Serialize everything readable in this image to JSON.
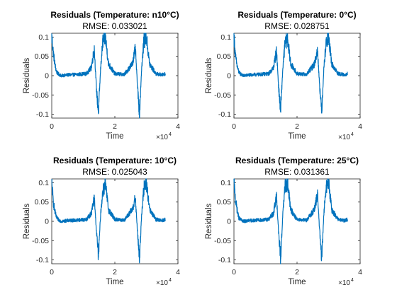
{
  "chart_data": [
    {
      "type": "line",
      "title": "Residuals (Temperature: n10°C)",
      "subtitle": "RMSE: 0.033021",
      "xlabel": "Time",
      "ylabel": "Residuals",
      "xlim": [
        0,
        40000
      ],
      "ylim": [
        -0.11,
        0.11
      ],
      "x_ticks": [
        "0",
        "2",
        "4"
      ],
      "y_ticks": [
        "-0.1",
        "-0.05",
        "0",
        "0.05",
        "0.1"
      ],
      "x_exponent_base": "×10",
      "x_exponent_power": "4",
      "grid": false,
      "series_color": "#0072BD",
      "x": [
        0,
        500,
        1000,
        1500,
        2000,
        3000,
        5000,
        8000,
        11000,
        12500,
        13500,
        14200,
        14800,
        15500,
        16200,
        17000,
        18000,
        20000,
        23000,
        25500,
        26500,
        27200,
        27800,
        28500,
        29200,
        30000,
        31000,
        33000,
        35000,
        36000
      ],
      "values": [
        0.1,
        0.06,
        0.03,
        0.01,
        0.005,
        0.0,
        0.002,
        0.003,
        0.005,
        0.02,
        0.07,
        -0.04,
        -0.095,
        0.02,
        0.09,
        0.1,
        0.03,
        0.005,
        0.003,
        0.03,
        0.07,
        -0.03,
        -0.1,
        0.02,
        0.09,
        0.1,
        0.03,
        0.005,
        0.002,
        0.005
      ]
    },
    {
      "type": "line",
      "title": "Residuals (Temperature: 0°C)",
      "subtitle": "RMSE: 0.028751",
      "xlabel": "Time",
      "ylabel": "Residuals",
      "xlim": [
        0,
        40000
      ],
      "ylim": [
        -0.11,
        0.11
      ],
      "x_ticks": [
        "0",
        "2",
        "4"
      ],
      "y_ticks": [
        "-0.1",
        "-0.05",
        "0",
        "0.05",
        "0.1"
      ],
      "x_exponent_base": "×10",
      "x_exponent_power": "4",
      "grid": false,
      "series_color": "#0072BD",
      "x": [
        0,
        500,
        1000,
        1500,
        2000,
        3000,
        5000,
        8000,
        11000,
        12500,
        13500,
        14200,
        14800,
        15500,
        16200,
        17000,
        18000,
        20000,
        23000,
        25500,
        26500,
        27200,
        27800,
        28500,
        29200,
        30000,
        31000,
        33000,
        35000,
        36000
      ],
      "values": [
        0.1,
        0.05,
        0.025,
        0.01,
        0.005,
        0.0,
        0.002,
        0.003,
        0.005,
        0.02,
        0.065,
        -0.035,
        -0.09,
        0.02,
        0.085,
        0.095,
        0.03,
        0.005,
        0.003,
        0.03,
        0.065,
        -0.03,
        -0.095,
        0.02,
        0.085,
        0.1,
        0.03,
        0.005,
        0.002,
        0.005
      ]
    },
    {
      "type": "line",
      "title": "Residuals (Temperature: 10°C)",
      "subtitle": "RMSE: 0.025043",
      "xlabel": "Time",
      "ylabel": "Residuals",
      "xlim": [
        0,
        40000
      ],
      "ylim": [
        -0.11,
        0.11
      ],
      "x_ticks": [
        "0",
        "2",
        "4"
      ],
      "y_ticks": [
        "-0.1",
        "-0.05",
        "0",
        "0.05",
        "0.1"
      ],
      "x_exponent_base": "×10",
      "x_exponent_power": "4",
      "grid": false,
      "series_color": "#0072BD",
      "x": [
        0,
        500,
        1000,
        1500,
        2000,
        3000,
        5000,
        8000,
        11000,
        12500,
        13500,
        14200,
        14800,
        15500,
        16200,
        17000,
        18000,
        20000,
        23000,
        25500,
        26500,
        27200,
        27800,
        28500,
        29200,
        30000,
        31000,
        33000,
        35000,
        36000
      ],
      "values": [
        0.1,
        0.05,
        0.025,
        0.01,
        0.005,
        0.0,
        0.002,
        0.003,
        0.005,
        0.02,
        0.06,
        -0.03,
        -0.09,
        0.02,
        0.08,
        0.095,
        0.03,
        0.005,
        0.003,
        0.03,
        0.06,
        -0.03,
        -0.1,
        0.02,
        0.085,
        0.1,
        0.03,
        0.005,
        0.002,
        0.005
      ]
    },
    {
      "type": "line",
      "title": "Residuals (Temperature: 25°C)",
      "subtitle": "RMSE: 0.031361",
      "xlabel": "Time",
      "ylabel": "Residuals",
      "xlim": [
        0,
        40000
      ],
      "ylim": [
        -0.11,
        0.11
      ],
      "x_ticks": [
        "0",
        "2",
        "4"
      ],
      "y_ticks": [
        "-0.1",
        "-0.05",
        "0",
        "0.05",
        "0.1"
      ],
      "x_exponent_base": "×10",
      "x_exponent_power": "4",
      "grid": false,
      "series_color": "#0072BD",
      "x": [
        0,
        500,
        1000,
        1500,
        2000,
        3000,
        5000,
        8000,
        11000,
        12500,
        13500,
        14200,
        14800,
        15500,
        16200,
        17000,
        18000,
        20000,
        23000,
        25500,
        26500,
        27200,
        27800,
        28500,
        29200,
        30000,
        31000,
        33000,
        35000,
        36000
      ],
      "values": [
        0.1,
        0.055,
        0.03,
        0.01,
        0.005,
        0.0,
        0.002,
        0.003,
        0.005,
        0.02,
        0.065,
        -0.035,
        -0.095,
        0.02,
        0.09,
        0.1,
        0.03,
        0.005,
        0.003,
        0.03,
        0.07,
        -0.03,
        -0.1,
        0.02,
        0.09,
        0.1,
        0.03,
        0.005,
        0.002,
        0.005
      ]
    }
  ]
}
